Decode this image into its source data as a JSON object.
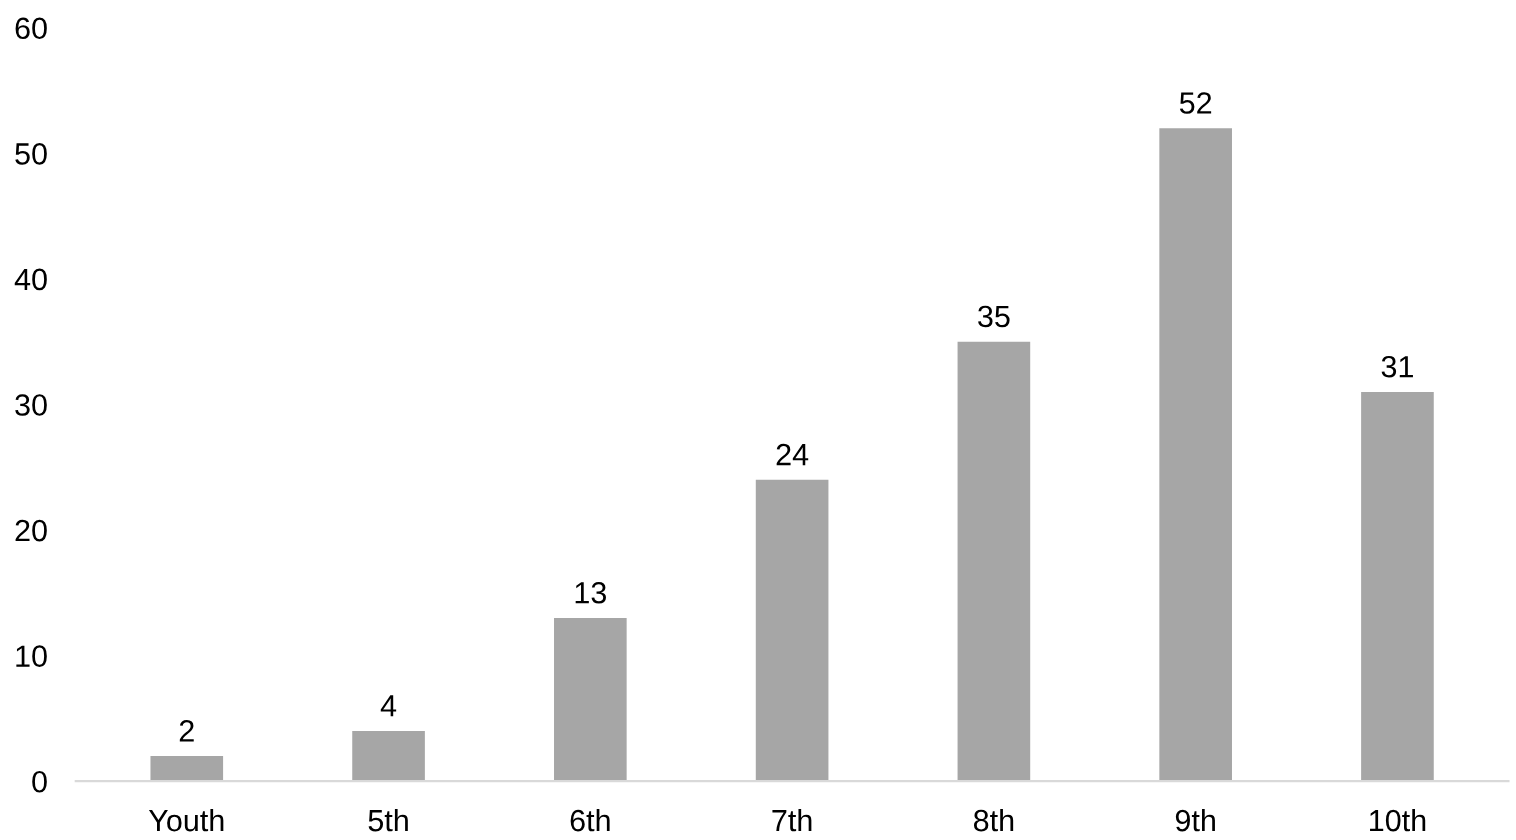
{
  "chart_data": {
    "type": "bar",
    "categories": [
      "Youth",
      "5th",
      "6th",
      "7th",
      "8th",
      "9th",
      "10th"
    ],
    "values": [
      2,
      4,
      13,
      24,
      35,
      52,
      31
    ],
    "color": "#a6a6a6",
    "ylim": [
      0,
      60
    ],
    "yticks": [
      0,
      10,
      20,
      30,
      40,
      50,
      60
    ],
    "grid": false,
    "data_labels": true
  }
}
